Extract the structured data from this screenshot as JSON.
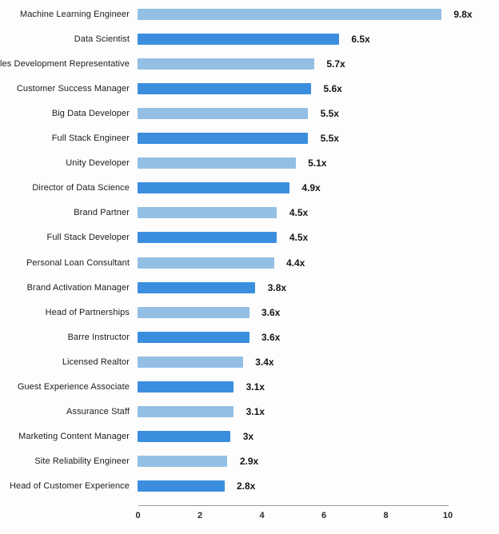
{
  "chart_data": {
    "type": "bar",
    "orientation": "horizontal",
    "title": "",
    "xlabel": "",
    "ylabel": "",
    "xlim": [
      0,
      10
    ],
    "x_ticks": [
      "0",
      "2",
      "4",
      "6",
      "8",
      "10"
    ],
    "x_tick_values": [
      0,
      2,
      4,
      6,
      8,
      10
    ],
    "grid": "off",
    "legend": "none",
    "categories": [
      "Machine Learning Engineer",
      "Data Scientist",
      "Sales Development Representative",
      "Customer Success Manager",
      "Big Data Developer",
      "Full Stack Engineer",
      "Unity Developer",
      "Director of Data Science",
      "Brand Partner",
      "Full Stack Developer",
      "Personal Loan Consultant",
      "Brand Activation Manager",
      "Head of Partnerships",
      "Barre Instructor",
      "Licensed Realtor",
      "Guest Experience Associate",
      "Assurance Staff",
      "Marketing Content Manager",
      "Site Reliability Engineer",
      "Head of Customer Experience"
    ],
    "values": [
      9.8,
      6.5,
      5.7,
      5.6,
      5.5,
      5.5,
      5.1,
      4.9,
      4.5,
      4.5,
      4.4,
      3.8,
      3.6,
      3.6,
      3.4,
      3.1,
      3.1,
      3.0,
      2.9,
      2.8
    ],
    "value_labels": [
      "9.8x",
      "6.5x",
      "5.7x",
      "5.6x",
      "5.5x",
      "5.5x",
      "5.1x",
      "4.9x",
      "4.5x",
      "4.5x",
      "4.4x",
      "3.8x",
      "3.6x",
      "3.6x",
      "3.4x",
      "3.1x",
      "3.1x",
      "3x",
      "2.9x",
      "2.8x"
    ],
    "bar_color_odd_rows": "#93bfe4",
    "bar_color_even_rows": "#3b8ede"
  }
}
